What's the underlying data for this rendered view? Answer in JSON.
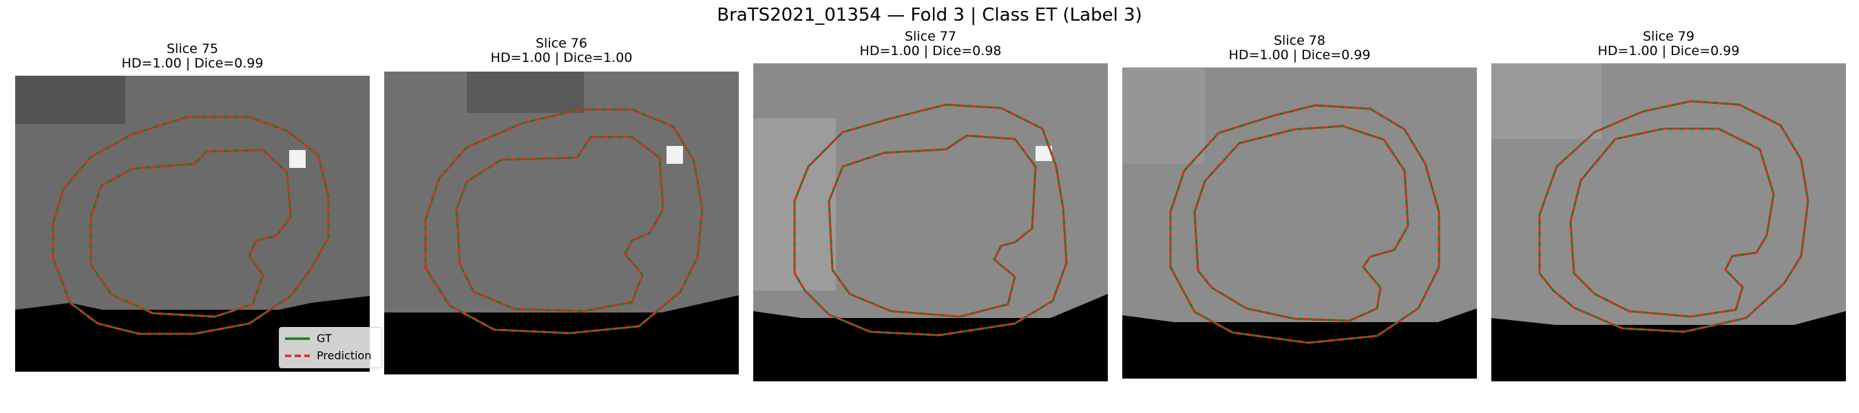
{
  "figure_title": "BraTS2021_01354 — Fold 3 | Class ET (Label 3)",
  "legend": {
    "gt_label": "GT",
    "pred_label": "Prediction"
  },
  "colors": {
    "gt": "#1a7f1a",
    "pred": "#e3291a",
    "background": "#ffffff"
  },
  "slices": [
    {
      "title": "Slice 75",
      "metrics": "HD=1.00 | Dice=0.99"
    },
    {
      "title": "Slice 76",
      "metrics": "HD=1.00 | Dice=1.00"
    },
    {
      "title": "Slice 77",
      "metrics": "HD=1.00 | Dice=0.98"
    },
    {
      "title": "Slice 78",
      "metrics": "HD=1.00 | Dice=0.99"
    },
    {
      "title": "Slice 79",
      "metrics": "HD=1.00 | Dice=0.99"
    }
  ]
}
